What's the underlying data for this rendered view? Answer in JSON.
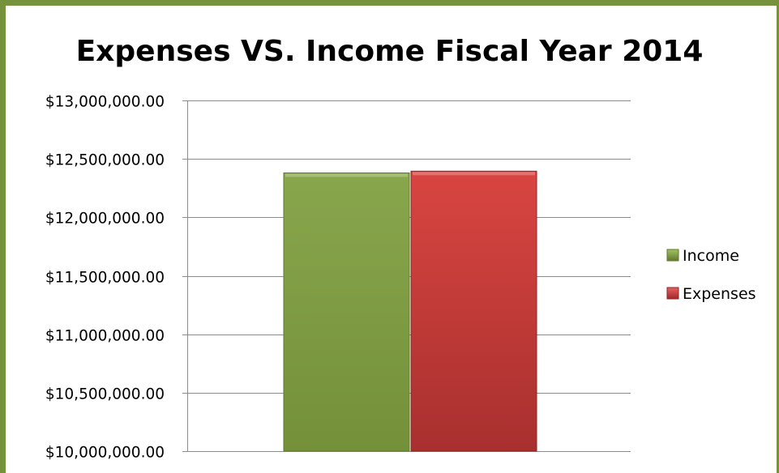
{
  "chart_data": {
    "type": "bar",
    "title": "Expenses VS. Income Fiscal Year 2014",
    "categories": [
      ""
    ],
    "series": [
      {
        "name": "Income",
        "values": [
          12380000
        ],
        "color": "#76923c"
      },
      {
        "name": "Expenses",
        "values": [
          12395000
        ],
        "color": "#c0393b"
      }
    ],
    "ylim": [
      10000000,
      13000000
    ],
    "y_ticks": [
      10000000,
      10500000,
      11000000,
      11500000,
      12000000,
      12500000,
      13000000
    ],
    "y_tick_labels": [
      "$10,000,000.00",
      "$10,500,000.00",
      "$11,000,000.00",
      "$11,500,000.00",
      "$12,000,000.00",
      "$12,500,000.00",
      "$13,000,000.00"
    ],
    "xlabel": "",
    "ylabel": "",
    "grid": true,
    "legend_position": "right"
  }
}
